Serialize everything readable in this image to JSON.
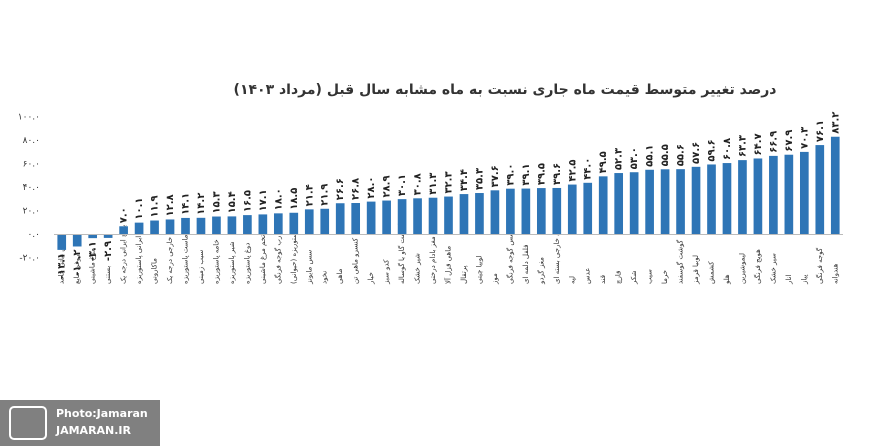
{
  "chart_data": {
    "type": "bar",
    "title": "درصد تغییر متوسط قیمت ماه جاری نسبت به ماه مشابه سال قبل (مرداد ۱۴۰۳)",
    "categories": [
      "روغن نباتی جامد",
      "روغن مایع",
      "مرغ ماشینی",
      "بستنی",
      "برنج ایرانی درجه یک",
      "پنیر ایرانی پاستوریزه",
      "ماکارونی",
      "برنج خارجی درجه یک",
      "ماست پاستوریزه",
      "سیب زمینی",
      "خامه پاستوریزه",
      "شیر پاستوریزه",
      "دوغ پاستوریزه",
      "تخم مرغ ماشینی",
      "رب گوجه فرنگی",
      "کره پاستوریزه (حیوانی)",
      "سس مایونز",
      "نخود",
      "ماهی",
      "کنسرو ماهی تن",
      "خیار",
      "کدو سبز",
      "گوشت گاو یا گوساله",
      "شیر خشک",
      "مغز بادام درختی",
      "ماهی قزل آلا",
      "پرتقال",
      "لوبیا چیتی",
      "موز",
      "سس گوجه فرنگی",
      "فلفل دلمه ای",
      "مغز گردو",
      "چای خارجی بسته ای",
      "لپه",
      "عدس",
      "قند",
      "قارچ",
      "شکر",
      "سیب",
      "خرما",
      "گوشت گوسفند",
      "لوبیا قرمز",
      "کشمش",
      "هلو",
      "لیموشیرین",
      "هویج فرنگی",
      "سیر خشک",
      "انار",
      "پیاز",
      "گوجه فرنگی",
      "هندوانه"
    ],
    "values": [
      -13.1,
      -10.2,
      -3.1,
      -2.9,
      7.0,
      10.1,
      11.9,
      12.8,
      14.1,
      14.2,
      15.3,
      15.4,
      16.5,
      17.1,
      18.0,
      18.5,
      21.4,
      21.9,
      26.6,
      26.8,
      28.0,
      28.9,
      30.1,
      30.8,
      31.3,
      32.3,
      34.4,
      35.3,
      37.6,
      39.0,
      39.1,
      39.5,
      39.6,
      42.5,
      44.0,
      49.5,
      52.3,
      53.0,
      55.1,
      55.5,
      55.6,
      57.6,
      59.6,
      60.8,
      63.3,
      64.7,
      66.9,
      67.9,
      70.3,
      76.1,
      83.2
    ],
    "value_labels": [
      "-۱۳.۱",
      "-۱۰.۲",
      "-۳.۱",
      "-۲.۹",
      "۷.۰",
      "۱۰.۱",
      "۱۱.۹",
      "۱۲.۸",
      "۱۴.۱",
      "۱۴.۲",
      "۱۵.۳",
      "۱۵.۴",
      "۱۶.۵",
      "۱۷.۱",
      "۱۸.۰",
      "۱۸.۵",
      "۲۱.۴",
      "۲۱.۹",
      "۲۶.۶",
      "۲۶.۸",
      "۲۸.۰",
      "۲۸.۹",
      "۳۰.۱",
      "۳۰.۸",
      "۳۱.۳",
      "۳۲.۳",
      "۳۴.۴",
      "۳۵.۳",
      "۳۷.۶",
      "۳۹.۰",
      "۳۹.۱",
      "۳۹.۵",
      "۳۹.۶",
      "۴۲.۵",
      "۴۴.۰",
      "۴۹.۵",
      "۵۲.۳",
      "۵۳.۰",
      "۵۵.۱",
      "۵۵.۵",
      "۵۵.۶",
      "۵۷.۶",
      "۵۹.۶",
      "۶۰.۸",
      "۶۳.۳",
      "۶۴.۷",
      "۶۶.۹",
      "۶۷.۹",
      "۷۰.۳",
      "۷۶.۱",
      "۸۳.۲"
    ],
    "color": "#2e75b6",
    "ylim": [
      -20,
      100
    ],
    "yticks": [
      {
        "value": -20,
        "label": "-۲۰.۰"
      },
      {
        "value": 0,
        "label": "۰.۰"
      },
      {
        "value": 20,
        "label": "۲۰.۰"
      },
      {
        "value": 40,
        "label": "۴۰.۰"
      },
      {
        "value": 60,
        "label": "۶۰.۰"
      },
      {
        "value": 80,
        "label": "۸۰.۰"
      },
      {
        "value": 100,
        "label": "۱۰۰.۰"
      }
    ],
    "grid": false
  },
  "watermark": {
    "line1": "Photo:Jamaran",
    "line2": "JAMARAN.IR"
  }
}
